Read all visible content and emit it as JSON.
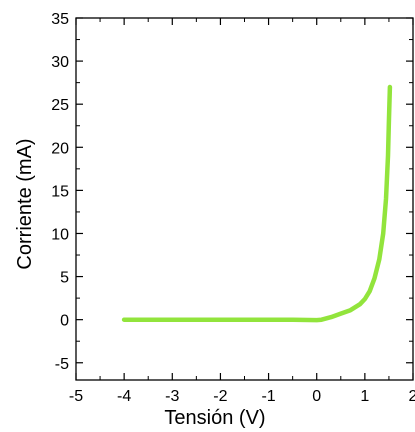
{
  "chart_data": {
    "type": "line",
    "title": "",
    "xlabel": "Tensión (V)",
    "ylabel": "Corriente (mA)",
    "xlim": [
      -5,
      2
    ],
    "ylim": [
      -7,
      35
    ],
    "x_ticks": [
      -5,
      -4,
      -3,
      -2,
      -1,
      0,
      1,
      2
    ],
    "x_tick_labels": [
      "-5",
      "-4",
      "-3",
      "-2",
      "-1",
      "0",
      "1",
      "2"
    ],
    "y_ticks": [
      -5,
      0,
      5,
      10,
      15,
      20,
      25,
      30,
      35
    ],
    "y_tick_labels": [
      "-5",
      "0",
      "5",
      "10",
      "15",
      "20",
      "25",
      "30",
      "35"
    ],
    "grid": false,
    "series": [
      {
        "color": "#92e43c",
        "x": [
          -4.0,
          -3.0,
          -2.0,
          -1.0,
          -0.5,
          0.0,
          0.1,
          0.3,
          0.5,
          0.7,
          0.9,
          1.0,
          1.1,
          1.2,
          1.3,
          1.38,
          1.44,
          1.48,
          1.5,
          1.52
        ],
        "y": [
          0.0,
          0.0,
          0.0,
          0.0,
          -0.02,
          -0.05,
          0.0,
          0.3,
          0.7,
          1.1,
          1.8,
          2.4,
          3.3,
          4.8,
          7.0,
          10.0,
          14.0,
          19.0,
          23.0,
          27.0
        ]
      }
    ]
  }
}
